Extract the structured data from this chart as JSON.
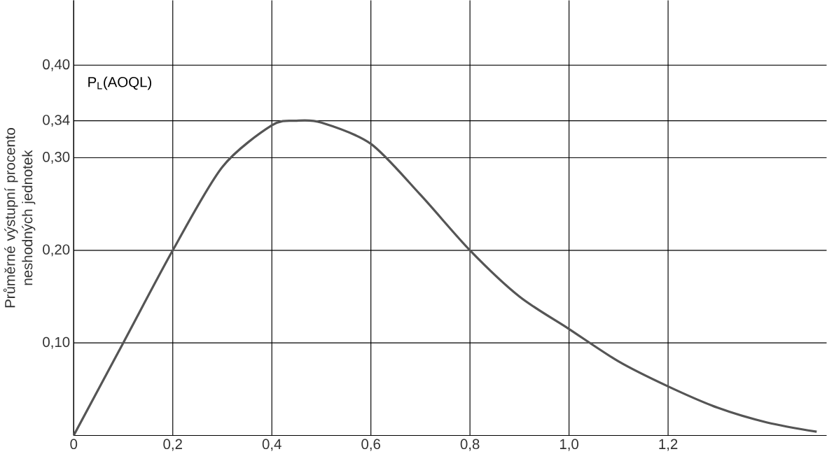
{
  "chart_data": {
    "type": "line",
    "ylabel": "Průměrné výstupní procento neshodných jednotek",
    "annotations": [
      "P$_{L}$(AOQL)"
    ],
    "x": [
      0,
      0.1,
      0.2,
      0.3,
      0.4,
      0.45,
      0.5,
      0.6,
      0.7,
      0.8,
      0.9,
      1.0,
      1.1,
      1.2,
      1.3,
      1.4,
      1.5
    ],
    "values": [
      0,
      0.1,
      0.2,
      0.29,
      0.335,
      0.34,
      0.338,
      0.315,
      0.26,
      0.2,
      0.15,
      0.115,
      0.08,
      0.053,
      0.03,
      0.014,
      0.004
    ],
    "color": "#555555",
    "xlim": [
      0,
      1.52
    ],
    "ylim": [
      0,
      0.47
    ],
    "xticks": [
      0,
      {
        "value": 0.2,
        "label": "0,2"
      },
      {
        "value": 0.4,
        "label": "0,4"
      },
      {
        "value": 0.6,
        "label": "0,6"
      },
      {
        "value": 0.8,
        "label": "0,8"
      },
      {
        "value": 1.0,
        "label": "1,0"
      },
      {
        "value": 1.2,
        "label": "1,2"
      }
    ],
    "yticks": [
      {
        "value": 0.1,
        "label": "0,10"
      },
      {
        "value": 0.2,
        "label": "0,20"
      },
      {
        "value": 0.3,
        "label": "0,30"
      },
      {
        "value": 0.34,
        "label": "0,34"
      },
      {
        "value": 0.4,
        "label": "0,40"
      }
    ],
    "grid": true,
    "marker": "none",
    "line_style": "solid"
  }
}
